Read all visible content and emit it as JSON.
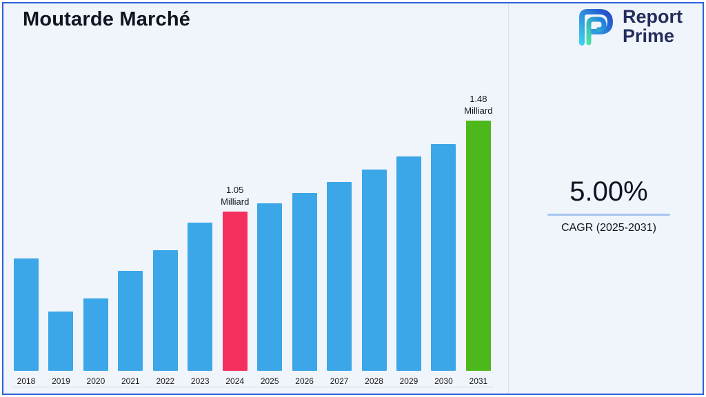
{
  "page": {
    "title": "Moutarde Marché"
  },
  "logo": {
    "word1": "Report",
    "word2": "Prime"
  },
  "cagr": {
    "value": "5.00%",
    "label": "CAGR (2025-2031)"
  },
  "chart_data": {
    "type": "bar",
    "title": "Moutarde Marché",
    "unit": "Milliard",
    "categories": [
      "2018",
      "2019",
      "2020",
      "2021",
      "2022",
      "2023",
      "2024",
      "2025",
      "2026",
      "2027",
      "2028",
      "2029",
      "2030",
      "2031"
    ],
    "values": [
      0.83,
      0.58,
      0.64,
      0.77,
      0.87,
      1.0,
      1.05,
      1.09,
      1.14,
      1.19,
      1.25,
      1.31,
      1.37,
      1.48
    ],
    "ylim": [
      0.3,
      1.6
    ],
    "grid": false,
    "legend": false,
    "colors": {
      "default": "#3BA7E8",
      "2024": "#F5305E",
      "2031": "#4DB81B"
    },
    "annotations": [
      {
        "category": "2024",
        "text_lines": [
          "1.05",
          "Milliard"
        ]
      },
      {
        "category": "2031",
        "text_lines": [
          "1.48",
          "Milliard"
        ]
      }
    ]
  }
}
